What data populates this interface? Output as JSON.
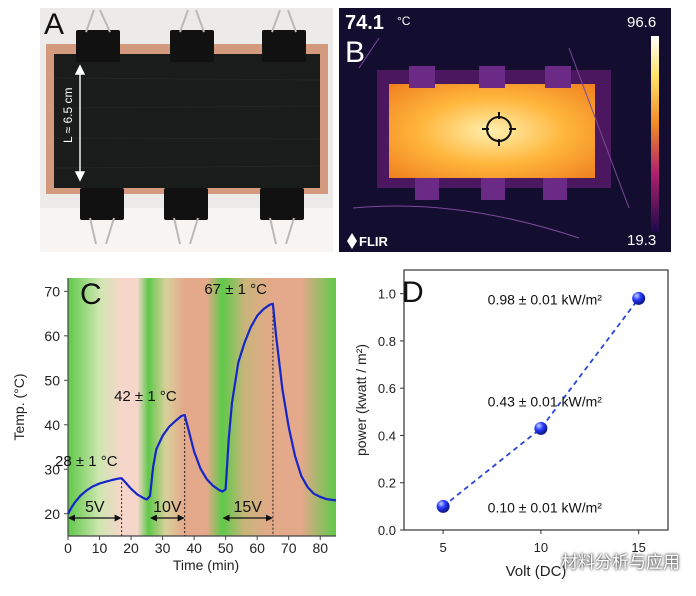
{
  "panels": {
    "a": {
      "label": "A",
      "length_label": "L ≈ 6.5 cm"
    },
    "b": {
      "label": "B",
      "temp_reading": "74.1",
      "temp_unit": "°C",
      "scale_max": "96.6",
      "scale_min": "19.3",
      "brand": "FLIR",
      "brand_icon": "flir-logo-icon"
    },
    "c": {
      "label": "C"
    },
    "d": {
      "label": "D"
    }
  },
  "watermark": "材料分析与应用",
  "colors": {
    "curve": "#1526c8",
    "dash": "#2a45d8",
    "bg_green": "#5fc94a",
    "bg_red": "#e4a88a",
    "bg_pink": "#f6d6cb",
    "hot": "#ffb63c"
  },
  "chart_data": [
    {
      "type": "line",
      "panel": "C",
      "xlabel": "Time (min)",
      "ylabel": "Temp. (°C)",
      "xlim": [
        0,
        85
      ],
      "ylim": [
        15,
        73
      ],
      "xticks": [
        0,
        10,
        20,
        30,
        40,
        50,
        60,
        70,
        80
      ],
      "yticks": [
        20,
        30,
        40,
        50,
        60,
        70
      ],
      "x": [
        0,
        1,
        2,
        4,
        6,
        8,
        10,
        12,
        14,
        16,
        17,
        18,
        20,
        22,
        24,
        25,
        26,
        27,
        28,
        30,
        32,
        34,
        36,
        37,
        38,
        40,
        42,
        44,
        46,
        48,
        49,
        50,
        51,
        52,
        54,
        56,
        58,
        60,
        62,
        64,
        65,
        66,
        68,
        70,
        72,
        74,
        76,
        78,
        80,
        82,
        85
      ],
      "y": [
        20,
        21.3,
        22.4,
        24.1,
        25.3,
        26.2,
        26.8,
        27.2,
        27.6,
        27.9,
        28,
        27.2,
        25.6,
        24.3,
        23.5,
        23.2,
        24,
        30.5,
        34.5,
        37.5,
        39.5,
        40.8,
        42,
        42.2,
        39.5,
        34,
        30.2,
        27.8,
        26.3,
        25.3,
        25,
        25.5,
        37,
        45,
        54,
        58.5,
        62,
        64.5,
        66,
        67,
        67.2,
        60,
        48,
        39.5,
        33,
        28.5,
        26,
        24.5,
        23.8,
        23.3,
        23
      ],
      "segments": [
        {
          "label": "5V",
          "x0": 0,
          "x1": 17
        },
        {
          "label": "10V",
          "x0": 26,
          "x1": 37
        },
        {
          "label": "15V",
          "x0": 49,
          "x1": 65
        }
      ],
      "peaks": [
        {
          "label": "28 ± 1 °C",
          "x": 17,
          "y": 28
        },
        {
          "label": "42 ± 1 °C",
          "x": 37,
          "y": 42.2
        },
        {
          "label": "67 ± 1 °C",
          "x": 65,
          "y": 67.2
        }
      ]
    },
    {
      "type": "scatter",
      "panel": "D",
      "xlabel": "Volt (DC)",
      "ylabel": "power (kwatt / m²)",
      "xlim": [
        3,
        16.5
      ],
      "ylim": [
        0,
        1.1
      ],
      "xticks": [
        5,
        10,
        15
      ],
      "yticks": [
        0.0,
        0.2,
        0.4,
        0.6,
        0.8,
        1.0
      ],
      "x": [
        5,
        10,
        15
      ],
      "y": [
        0.1,
        0.43,
        0.98
      ],
      "labels": [
        "0.10 ± 0.01 kW/m²",
        "0.43 ± 0.01 kW/m²",
        "0.98 ± 0.01 kW/m²"
      ]
    }
  ]
}
